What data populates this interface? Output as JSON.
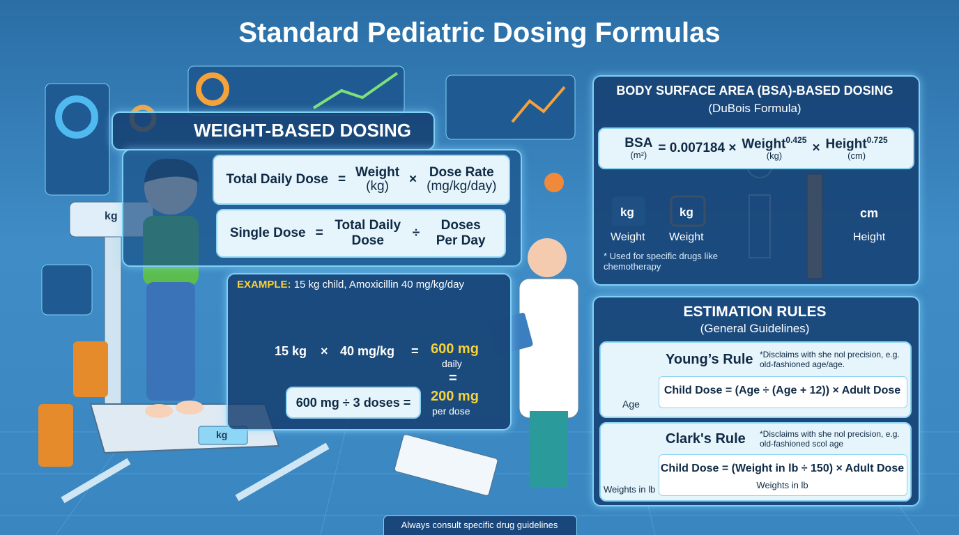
{
  "title": "Standard Pediatric Dosing Formulas",
  "weight_based": {
    "heading": "WEIGHT-BASED DOSING",
    "total_daily": {
      "lhs": "Total Daily Dose",
      "eq": "=",
      "a": "Weight",
      "a_unit": "(kg)",
      "op": "×",
      "b": "Dose Rate",
      "b_unit": "(mg/kg/day)"
    },
    "single": {
      "lhs": "Single Dose",
      "eq": "=",
      "a": "Total Daily Dose",
      "op": "÷",
      "b": "Doses Per Day"
    },
    "example": {
      "label": "EXAMPLE:",
      "text": "15 kg child, Amoxicillin 40 mg/kg/day",
      "weight": "15 kg",
      "times": "×",
      "rate": "40 mg/kg",
      "eq": "=",
      "daily": "600 mg",
      "daily_note": "daily",
      "eq2": "=",
      "split": "600 mg ÷ 3 doses =",
      "per_dose": "200 mg",
      "per_dose_note": "per dose"
    },
    "scale_labels": [
      "kg",
      "kg"
    ]
  },
  "bsa": {
    "heading": "BODY SURFACE AREA (BSA)-BASED DOSING",
    "subheading": "(DuBois Formula)",
    "formula": {
      "lhs": "BSA",
      "lhs_unit": "(m²)",
      "constant": "= 0.007184 ×",
      "a": "Weight",
      "a_exp": "0.425",
      "a_unit": "(kg)",
      "op": "×",
      "b": "Height",
      "b_exp": "0.725",
      "b_unit": "(cm)"
    },
    "icons": [
      {
        "symbol": "kg",
        "label": "Weight"
      },
      {
        "symbol": "kg",
        "label": "Weight"
      },
      {
        "symbol": "cm",
        "label": "Height"
      }
    ],
    "note": "* Used for specific drugs like chemotherapy"
  },
  "estimation": {
    "heading": "ESTIMATION RULES",
    "subheading": "(General Guidelines)",
    "rules": [
      {
        "name": "Young’s Rule",
        "note": "*Disclaims with she nol precision, e.g. old-fashioned age/age.",
        "formula": "Child Dose = (Age ÷ (Age + 12)) × Adult Dose",
        "icon_label": "Age"
      },
      {
        "name": "Clark's Rule",
        "note": "*Disclaims with she nol precision, e.g. old-fashioned scol age",
        "formula": "Child Dose = (Weight in lb ÷ 150) × Adult Dose",
        "formula_note": "Weights in lb",
        "icon_label": "Weights in lb"
      }
    ]
  },
  "footer": "Always consult specific drug guidelines"
}
